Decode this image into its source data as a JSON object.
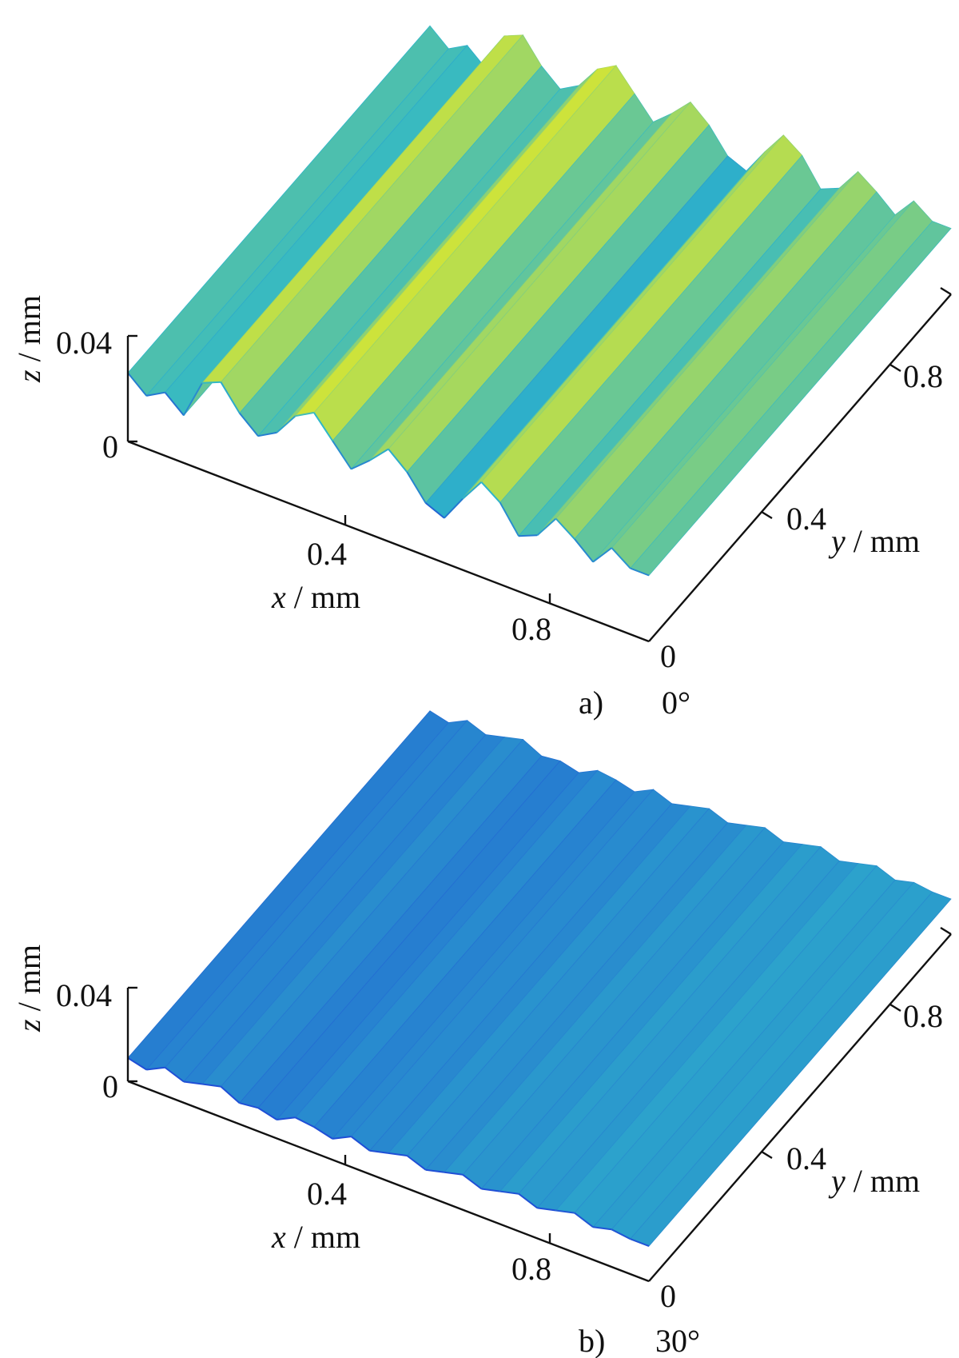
{
  "chart_data": [
    {
      "type": "surface",
      "panel_label": "a)",
      "angle_label": "0°",
      "x_axis": {
        "var": "x",
        "unit": "mm",
        "ticks": [
          "0.4",
          "0.8"
        ],
        "range": [
          0,
          1.0
        ]
      },
      "y_axis": {
        "var": "y",
        "unit": "mm",
        "ticks": [
          "0",
          "0.4",
          "0.8"
        ],
        "range": [
          0,
          1.0
        ]
      },
      "z_axis": {
        "var": "z",
        "unit": "mm",
        "ticks": [
          "0",
          "0.04"
        ],
        "range": [
          0,
          0.04
        ]
      },
      "surface": {
        "description_terms": [
          "parallel ridges along y"
        ],
        "ridge_profile_z_mm": [
          0.026,
          0.02,
          0.024,
          0.018,
          0.033,
          0.036,
          0.027,
          0.021,
          0.025,
          0.034,
          0.038,
          0.03,
          0.022,
          0.028,
          0.035,
          0.029,
          0.02,
          0.017,
          0.027,
          0.036,
          0.031,
          0.021,
          0.024,
          0.033,
          0.028,
          0.022,
          0.03,
          0.025
        ],
        "colors": {
          "low": "#1f4fd6",
          "mid": "#2fb7c9",
          "high": "#f5ee17"
        }
      }
    },
    {
      "type": "surface",
      "panel_label": "b)",
      "angle_label": "30°",
      "x_axis": {
        "var": "x",
        "unit": "mm",
        "ticks": [
          "0.4",
          "0.8"
        ],
        "range": [
          0,
          1.0
        ]
      },
      "y_axis": {
        "var": "y",
        "unit": "mm",
        "ticks": [
          "0",
          "0.4",
          "0.8"
        ],
        "range": [
          0,
          1.0
        ]
      },
      "z_axis": {
        "var": "z",
        "unit": "mm",
        "ticks": [
          "0",
          "0.04"
        ],
        "range": [
          0,
          0.04
        ]
      },
      "surface": {
        "ridge_profile_z_mm": [
          0.01,
          0.008,
          0.012,
          0.009,
          0.011,
          0.013,
          0.009,
          0.01,
          0.008,
          0.012,
          0.011,
          0.009,
          0.013,
          0.01,
          0.012,
          0.014,
          0.011,
          0.013,
          0.015,
          0.012,
          0.014,
          0.016,
          0.013,
          0.015,
          0.017,
          0.014,
          0.016,
          0.015
        ],
        "colors": {
          "low": "#1f4fd6",
          "mid": "#2fb7c9",
          "high": "#e8e41f"
        }
      }
    }
  ]
}
